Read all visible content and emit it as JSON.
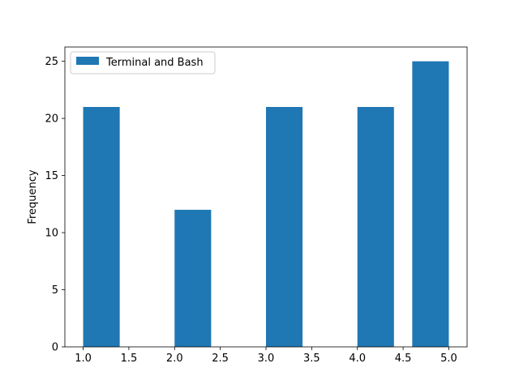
{
  "chart_data": {
    "type": "bar",
    "title": "",
    "xlabel": "",
    "ylabel": "Frequency",
    "xlim": [
      0.8,
      5.2
    ],
    "ylim": [
      0,
      26.25
    ],
    "grid": false,
    "legend_position": "upper-left",
    "bar_width": 0.4,
    "series": [
      {
        "name": "Terminal and Bash",
        "color": "#1f77b4",
        "bins": [
          {
            "x_start": 1.0,
            "x_end": 1.4,
            "value": 21
          },
          {
            "x_start": 2.0,
            "x_end": 2.4,
            "value": 12
          },
          {
            "x_start": 3.0,
            "x_end": 3.4,
            "value": 21
          },
          {
            "x_start": 4.0,
            "x_end": 4.4,
            "value": 21
          },
          {
            "x_start": 4.6,
            "x_end": 5.0,
            "value": 25
          }
        ]
      }
    ],
    "x_ticks": [
      {
        "value": 1.0,
        "label": "1.0"
      },
      {
        "value": 1.5,
        "label": "1.5"
      },
      {
        "value": 2.0,
        "label": "2.0"
      },
      {
        "value": 2.5,
        "label": "2.5"
      },
      {
        "value": 3.0,
        "label": "3.0"
      },
      {
        "value": 3.5,
        "label": "3.5"
      },
      {
        "value": 4.0,
        "label": "4.0"
      },
      {
        "value": 4.5,
        "label": "4.5"
      },
      {
        "value": 5.0,
        "label": "5.0"
      }
    ],
    "y_ticks": [
      {
        "value": 0,
        "label": "0"
      },
      {
        "value": 5,
        "label": "5"
      },
      {
        "value": 10,
        "label": "10"
      },
      {
        "value": 15,
        "label": "15"
      },
      {
        "value": 20,
        "label": "20"
      },
      {
        "value": 25,
        "label": "25"
      }
    ]
  }
}
